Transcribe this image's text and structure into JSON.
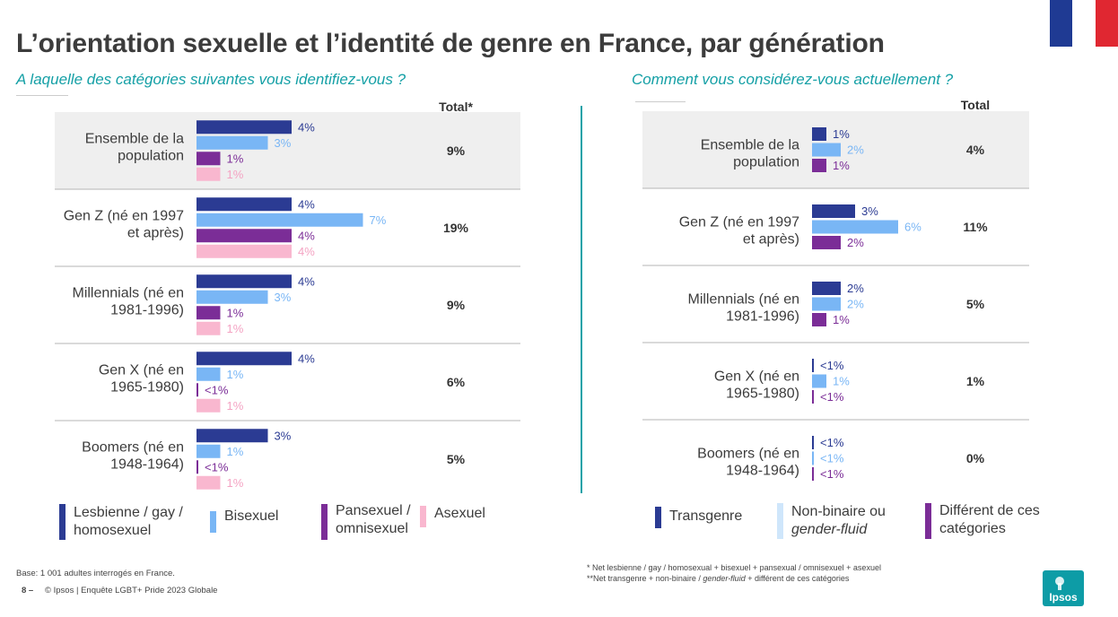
{
  "title": "L’orientation sexuelle et l’identité de genre en France, par génération",
  "left": {
    "question": "A laquelle des catégories suivantes vous identifiez-vous ?",
    "total_header": "Total*",
    "legend": [
      {
        "label_lines": [
          "Lesbienne / gay /",
          "homosexuel"
        ],
        "color": "#2b3b93"
      },
      {
        "label_lines": [
          "Bisexuel"
        ],
        "color": "#79b6f5"
      },
      {
        "label_lines": [
          "Pansexuel /",
          "omnisexuel"
        ],
        "color": "#7b2d97"
      },
      {
        "label_lines": [
          "Asexuel"
        ],
        "color": "#f9b7cf"
      }
    ]
  },
  "right": {
    "question": "Comment vous considérez-vous actuellement ?",
    "total_header": "Total",
    "legend": [
      {
        "label_lines": [
          "Transgenre"
        ],
        "color": "#2b3b93"
      },
      {
        "label_lines": [
          "Non-binaire ou",
          "gender-fluid"
        ],
        "color": "#cfe6fb"
      },
      {
        "label_lines": [
          "Différent de ces",
          "catégories"
        ],
        "color": "#7b2d97"
      }
    ]
  },
  "chart_data": [
    {
      "type": "bar",
      "orientation": "horizontal",
      "title": "A laquelle des catégories suivantes vous identifiez-vous ?",
      "categories": [
        [
          "Ensemble de la",
          "population"
        ],
        [
          "Gen Z (né en 1997",
          "et après)"
        ],
        [
          "Millennials (né en",
          "1981-1996)"
        ],
        [
          "Gen X (né en",
          "1965-1980)"
        ],
        [
          "Boomers (né en",
          "1948-1964)"
        ]
      ],
      "series": [
        {
          "name": "Lesbienne / gay / homosexuel",
          "color": "#2b3b93",
          "label_color": "#2b3b93",
          "values": [
            4,
            4,
            4,
            4,
            3
          ],
          "labels": [
            "4%",
            "4%",
            "4%",
            "4%",
            "3%"
          ]
        },
        {
          "name": "Bisexuel",
          "color": "#79b6f5",
          "label_color": "#79b6f5",
          "values": [
            3,
            7,
            3,
            1,
            1
          ],
          "labels": [
            "3%",
            "7%",
            "3%",
            "1%",
            "1%"
          ]
        },
        {
          "name": "Pansexuel / omnisexuel",
          "color": "#7b2d97",
          "label_color": "#7b2d97",
          "values": [
            1,
            4,
            1,
            0.3,
            0.3
          ],
          "labels": [
            "1%",
            "4%",
            "1%",
            "<1%",
            "<1%"
          ]
        },
        {
          "name": "Asexuel",
          "color": "#f9b7cf",
          "label_color": "#f4a3c3",
          "values": [
            1,
            4,
            1,
            1,
            1
          ],
          "labels": [
            "1%",
            "4%",
            "1%",
            "1%",
            "1%"
          ]
        }
      ],
      "totals": [
        "9%",
        "19%",
        "9%",
        "6%",
        "5%"
      ],
      "total_header": "Total*",
      "shaded_rows": [
        0
      ]
    },
    {
      "type": "bar",
      "orientation": "horizontal",
      "title": "Comment vous considérez-vous actuellement ?",
      "categories": [
        [
          "Ensemble de la",
          "population"
        ],
        [
          "Gen Z (né en 1997",
          "et après)"
        ],
        [
          "Millennials (né en",
          "1981-1996)"
        ],
        [
          "Gen X (né en",
          "1965-1980)"
        ],
        [
          "Boomers (né en",
          "1948-1964)"
        ]
      ],
      "series": [
        {
          "name": "Transgenre",
          "color": "#2b3b93",
          "label_color": "#2b3b93",
          "values": [
            1,
            3,
            2,
            0.1,
            0.1
          ],
          "labels": [
            "1%",
            "3%",
            "2%",
            "<1%",
            "<1%"
          ]
        },
        {
          "name": "Non-binaire ou gender-fluid",
          "color": "#79b6f5",
          "label_color": "#79b6f5",
          "values": [
            2,
            6,
            2,
            1,
            0.1
          ],
          "labels": [
            "2%",
            "6%",
            "2%",
            "1%",
            "<1%"
          ]
        },
        {
          "name": "Différent de ces catégories",
          "color": "#7b2d97",
          "label_color": "#7b2d97",
          "values": [
            1,
            2,
            1,
            0.1,
            0.1
          ],
          "labels": [
            "1%",
            "2%",
            "1%",
            "<1%",
            "<1%"
          ]
        }
      ],
      "totals": [
        "4%",
        "11%",
        "5%",
        "1%",
        "0%"
      ],
      "total_header": "Total",
      "shaded_rows": [
        0
      ]
    }
  ],
  "footer": {
    "base": "Base: 1 001 adultes interrogés en France.",
    "page": "8 –",
    "source": "© Ipsos | Enquête  LGBT+ Pride 2023 Globale",
    "note1": "* Net lesbienne / gay / homosexual + bisexuel + pansexual / omnisexuel + asexuel",
    "note2_prefix": "**Net transgenre + non-binaire / ",
    "note2_italic": "gender-fluid",
    "note2_suffix": " + différent de ces catégories"
  },
  "logo_text": "Ipsos",
  "flag_colors": [
    "#1f3a93",
    "#ffffff",
    "#e02731"
  ]
}
